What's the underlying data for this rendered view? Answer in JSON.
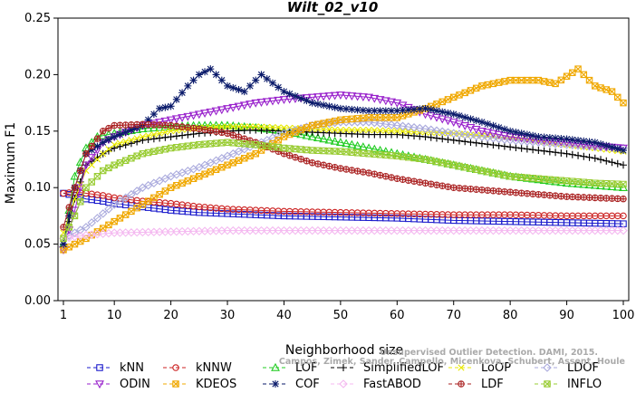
{
  "watermark": {
    "line1": "Unsupervised Outlier Detection. DAMI, 2015.",
    "line2": "Campos, Zimek, Sander, Campello, Micenkova, Schubert, Assent, Houle"
  },
  "chart_data": {
    "type": "line",
    "title": "Wilt_02_v10",
    "xlabel": "Neighborhood size",
    "ylabel": "Maximum F1",
    "xlim": [
      1,
      100
    ],
    "ylim": [
      0,
      0.25
    ],
    "xticks": [
      1,
      10,
      20,
      30,
      40,
      50,
      60,
      70,
      80,
      90,
      100
    ],
    "yticks": [
      "0.00",
      "0.05",
      "0.10",
      "0.15",
      "0.20",
      "0.25"
    ],
    "legend_position": "bottom",
    "grid": false,
    "series": [
      {
        "name": "kNN",
        "color": "#1a1acc",
        "marker": "square",
        "points": [
          [
            1,
            0.095
          ],
          [
            3,
            0.093
          ],
          [
            5,
            0.09
          ],
          [
            8,
            0.088
          ],
          [
            10,
            0.086
          ],
          [
            15,
            0.083
          ],
          [
            20,
            0.08
          ],
          [
            25,
            0.078
          ],
          [
            30,
            0.077
          ],
          [
            40,
            0.075
          ],
          [
            50,
            0.074
          ],
          [
            60,
            0.073
          ],
          [
            70,
            0.071
          ],
          [
            80,
            0.07
          ],
          [
            90,
            0.069
          ],
          [
            100,
            0.068
          ]
        ]
      },
      {
        "name": "kNNW",
        "color": "#cc2222",
        "marker": "circle",
        "points": [
          [
            1,
            0.095
          ],
          [
            3,
            0.096
          ],
          [
            5,
            0.095
          ],
          [
            8,
            0.093
          ],
          [
            10,
            0.091
          ],
          [
            15,
            0.088
          ],
          [
            20,
            0.086
          ],
          [
            25,
            0.083
          ],
          [
            30,
            0.081
          ],
          [
            40,
            0.079
          ],
          [
            50,
            0.078
          ],
          [
            60,
            0.077
          ],
          [
            70,
            0.076
          ],
          [
            80,
            0.076
          ],
          [
            90,
            0.075
          ],
          [
            100,
            0.075
          ]
        ]
      },
      {
        "name": "LOF",
        "color": "#22cc22",
        "marker": "triangle",
        "points": [
          [
            1,
            0.05
          ],
          [
            3,
            0.11
          ],
          [
            5,
            0.135
          ],
          [
            7,
            0.145
          ],
          [
            10,
            0.148
          ],
          [
            15,
            0.152
          ],
          [
            20,
            0.154
          ],
          [
            25,
            0.155
          ],
          [
            30,
            0.155
          ],
          [
            35,
            0.153
          ],
          [
            40,
            0.15
          ],
          [
            45,
            0.145
          ],
          [
            50,
            0.14
          ],
          [
            55,
            0.135
          ],
          [
            60,
            0.13
          ],
          [
            65,
            0.125
          ],
          [
            70,
            0.12
          ],
          [
            75,
            0.115
          ],
          [
            80,
            0.11
          ],
          [
            85,
            0.107
          ],
          [
            90,
            0.104
          ],
          [
            95,
            0.102
          ],
          [
            100,
            0.1
          ]
        ]
      },
      {
        "name": "SimplifiedLOF",
        "color": "#000000",
        "marker": "plus",
        "points": [
          [
            1,
            0.05
          ],
          [
            3,
            0.09
          ],
          [
            5,
            0.12
          ],
          [
            8,
            0.13
          ],
          [
            10,
            0.135
          ],
          [
            15,
            0.142
          ],
          [
            20,
            0.145
          ],
          [
            25,
            0.148
          ],
          [
            30,
            0.15
          ],
          [
            35,
            0.151
          ],
          [
            40,
            0.15
          ],
          [
            45,
            0.149
          ],
          [
            50,
            0.148
          ],
          [
            55,
            0.147
          ],
          [
            60,
            0.147
          ],
          [
            65,
            0.145
          ],
          [
            70,
            0.142
          ],
          [
            75,
            0.139
          ],
          [
            80,
            0.136
          ],
          [
            85,
            0.133
          ],
          [
            90,
            0.13
          ],
          [
            95,
            0.126
          ],
          [
            100,
            0.12
          ]
        ]
      },
      {
        "name": "LoOP",
        "color": "#e8e800",
        "marker": "x",
        "points": [
          [
            1,
            0.06
          ],
          [
            3,
            0.09
          ],
          [
            5,
            0.115
          ],
          [
            8,
            0.13
          ],
          [
            10,
            0.138
          ],
          [
            15,
            0.145
          ],
          [
            20,
            0.15
          ],
          [
            25,
            0.153
          ],
          [
            30,
            0.154
          ],
          [
            35,
            0.154
          ],
          [
            40,
            0.153
          ],
          [
            45,
            0.152
          ],
          [
            50,
            0.151
          ],
          [
            55,
            0.151
          ],
          [
            60,
            0.15
          ],
          [
            65,
            0.149
          ],
          [
            70,
            0.148
          ],
          [
            75,
            0.146
          ],
          [
            80,
            0.144
          ],
          [
            85,
            0.141
          ],
          [
            90,
            0.138
          ],
          [
            95,
            0.135
          ],
          [
            100,
            0.132
          ]
        ]
      },
      {
        "name": "LDOF",
        "color": "#aaaadd",
        "marker": "diamond",
        "points": [
          [
            1,
            0.055
          ],
          [
            5,
            0.065
          ],
          [
            10,
            0.085
          ],
          [
            15,
            0.1
          ],
          [
            20,
            0.11
          ],
          [
            25,
            0.118
          ],
          [
            30,
            0.128
          ],
          [
            35,
            0.138
          ],
          [
            40,
            0.148
          ],
          [
            45,
            0.155
          ],
          [
            50,
            0.158
          ],
          [
            55,
            0.158
          ],
          [
            60,
            0.155
          ],
          [
            65,
            0.152
          ],
          [
            70,
            0.148
          ],
          [
            75,
            0.145
          ],
          [
            80,
            0.142
          ],
          [
            85,
            0.14
          ],
          [
            90,
            0.138
          ],
          [
            95,
            0.136
          ],
          [
            100,
            0.135
          ]
        ]
      },
      {
        "name": "ODIN",
        "color": "#9922cc",
        "marker": "triangle-down",
        "points": [
          [
            1,
            0.045
          ],
          [
            3,
            0.08
          ],
          [
            5,
            0.12
          ],
          [
            8,
            0.14
          ],
          [
            10,
            0.145
          ],
          [
            15,
            0.155
          ],
          [
            20,
            0.16
          ],
          [
            25,
            0.165
          ],
          [
            30,
            0.17
          ],
          [
            35,
            0.175
          ],
          [
            40,
            0.178
          ],
          [
            45,
            0.18
          ],
          [
            50,
            0.182
          ],
          [
            55,
            0.18
          ],
          [
            60,
            0.175
          ],
          [
            65,
            0.165
          ],
          [
            70,
            0.158
          ],
          [
            75,
            0.15
          ],
          [
            80,
            0.145
          ],
          [
            85,
            0.142
          ],
          [
            90,
            0.14
          ],
          [
            95,
            0.137
          ],
          [
            100,
            0.135
          ]
        ]
      },
      {
        "name": "KDEOS",
        "color": "#f0a800",
        "marker": "square-x",
        "points": [
          [
            1,
            0.045
          ],
          [
            5,
            0.055
          ],
          [
            10,
            0.07
          ],
          [
            15,
            0.085
          ],
          [
            20,
            0.1
          ],
          [
            25,
            0.11
          ],
          [
            30,
            0.12
          ],
          [
            35,
            0.13
          ],
          [
            40,
            0.145
          ],
          [
            45,
            0.155
          ],
          [
            50,
            0.16
          ],
          [
            55,
            0.162
          ],
          [
            60,
            0.162
          ],
          [
            65,
            0.17
          ],
          [
            70,
            0.18
          ],
          [
            75,
            0.19
          ],
          [
            80,
            0.195
          ],
          [
            85,
            0.195
          ],
          [
            88,
            0.192
          ],
          [
            92,
            0.205
          ],
          [
            95,
            0.19
          ],
          [
            98,
            0.185
          ],
          [
            100,
            0.175
          ]
        ]
      },
      {
        "name": "COF",
        "color": "#0a1a6a",
        "marker": "asterisk",
        "points": [
          [
            1,
            0.05
          ],
          [
            3,
            0.1
          ],
          [
            5,
            0.13
          ],
          [
            8,
            0.14
          ],
          [
            10,
            0.145
          ],
          [
            15,
            0.155
          ],
          [
            18,
            0.17
          ],
          [
            20,
            0.172
          ],
          [
            23,
            0.19
          ],
          [
            25,
            0.2
          ],
          [
            27,
            0.205
          ],
          [
            30,
            0.19
          ],
          [
            33,
            0.185
          ],
          [
            36,
            0.2
          ],
          [
            40,
            0.185
          ],
          [
            45,
            0.175
          ],
          [
            50,
            0.17
          ],
          [
            55,
            0.168
          ],
          [
            60,
            0.168
          ],
          [
            65,
            0.17
          ],
          [
            70,
            0.165
          ],
          [
            75,
            0.158
          ],
          [
            80,
            0.15
          ],
          [
            85,
            0.145
          ],
          [
            90,
            0.143
          ],
          [
            95,
            0.14
          ],
          [
            100,
            0.133
          ]
        ]
      },
      {
        "name": "FastABOD",
        "color": "#f4b8f0",
        "marker": "diamond",
        "points": [
          [
            1,
            0.055
          ],
          [
            5,
            0.058
          ],
          [
            10,
            0.06
          ],
          [
            20,
            0.061
          ],
          [
            30,
            0.062
          ],
          [
            40,
            0.062
          ],
          [
            50,
            0.062
          ],
          [
            60,
            0.062
          ],
          [
            70,
            0.062
          ],
          [
            80,
            0.062
          ],
          [
            90,
            0.062
          ],
          [
            100,
            0.062
          ]
        ]
      },
      {
        "name": "LDF",
        "color": "#aa2222",
        "marker": "circle-plus",
        "points": [
          [
            1,
            0.065
          ],
          [
            3,
            0.1
          ],
          [
            5,
            0.13
          ],
          [
            8,
            0.15
          ],
          [
            10,
            0.155
          ],
          [
            15,
            0.156
          ],
          [
            20,
            0.155
          ],
          [
            25,
            0.152
          ],
          [
            30,
            0.148
          ],
          [
            35,
            0.14
          ],
          [
            40,
            0.13
          ],
          [
            45,
            0.122
          ],
          [
            50,
            0.117
          ],
          [
            55,
            0.113
          ],
          [
            60,
            0.108
          ],
          [
            65,
            0.104
          ],
          [
            70,
            0.1
          ],
          [
            75,
            0.098
          ],
          [
            80,
            0.096
          ],
          [
            85,
            0.094
          ],
          [
            90,
            0.092
          ],
          [
            95,
            0.091
          ],
          [
            100,
            0.09
          ]
        ]
      },
      {
        "name": "INFLO",
        "color": "#99cc33",
        "marker": "square-x",
        "points": [
          [
            1,
            0.055
          ],
          [
            3,
            0.075
          ],
          [
            5,
            0.1
          ],
          [
            8,
            0.115
          ],
          [
            10,
            0.12
          ],
          [
            15,
            0.13
          ],
          [
            20,
            0.135
          ],
          [
            25,
            0.138
          ],
          [
            30,
            0.14
          ],
          [
            35,
            0.138
          ],
          [
            40,
            0.135
          ],
          [
            45,
            0.133
          ],
          [
            50,
            0.132
          ],
          [
            55,
            0.13
          ],
          [
            60,
            0.128
          ],
          [
            65,
            0.125
          ],
          [
            70,
            0.12
          ],
          [
            75,
            0.115
          ],
          [
            80,
            0.11
          ],
          [
            85,
            0.108
          ],
          [
            90,
            0.106
          ],
          [
            95,
            0.104
          ],
          [
            100,
            0.103
          ]
        ]
      }
    ]
  }
}
